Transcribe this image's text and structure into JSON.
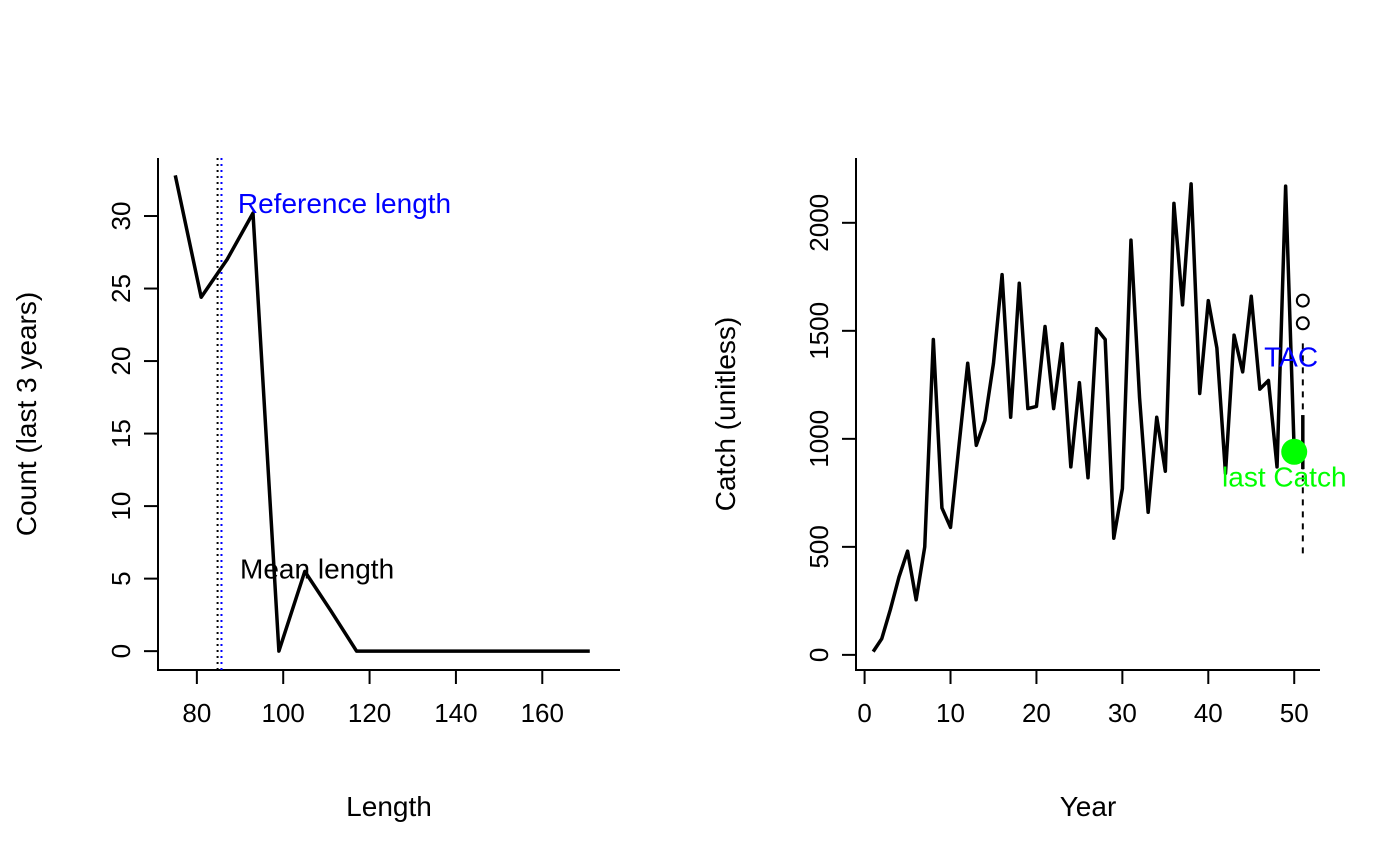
{
  "chart_data": [
    {
      "type": "line",
      "xlabel": "Length",
      "ylabel": "Count (last 3 years)",
      "xlim": [
        71,
        178
      ],
      "ylim": [
        -1.3,
        34
      ],
      "xticks": [
        80,
        100,
        120,
        140,
        160
      ],
      "yticks": [
        0,
        5,
        10,
        15,
        20,
        25,
        30
      ],
      "series": [
        {
          "x": [
            75,
            81,
            87,
            93,
            99,
            105,
            111,
            117,
            123,
            129,
            135,
            141,
            147,
            153,
            159,
            165,
            171
          ],
          "values": [
            32.8,
            24.4,
            27.0,
            30.2,
            0,
            5.5,
            2.8,
            0,
            0,
            0,
            0,
            0,
            0,
            0,
            0,
            0,
            0
          ],
          "color": "#000000"
        }
      ],
      "vlines": [
        {
          "x": 84.8,
          "color": "#000000",
          "style": "dotted"
        },
        {
          "x": 85.7,
          "color": "#0000FF",
          "style": "dotted"
        }
      ],
      "annotations": [
        {
          "text": "Reference length",
          "x": 89.5,
          "y": 30.2,
          "color": "#0000FF"
        },
        {
          "text": "Mean length",
          "x": 90.0,
          "y": 5.0,
          "color": "#000000"
        }
      ]
    },
    {
      "type": "line",
      "xlabel": "Year",
      "ylabel": "Catch (unitless)",
      "xlim": [
        -1,
        53
      ],
      "ylim": [
        -70,
        2300
      ],
      "xticks": [
        0,
        10,
        20,
        30,
        40,
        50
      ],
      "yticks": [
        0,
        500,
        1000,
        1500,
        2000
      ],
      "series": [
        {
          "x": [
            1,
            2,
            3,
            4,
            5,
            6,
            7,
            8,
            9,
            10,
            11,
            12,
            13,
            14,
            15,
            16,
            17,
            18,
            19,
            20,
            21,
            22,
            23,
            24,
            25,
            26,
            27,
            28,
            29,
            30,
            31,
            32,
            33,
            34,
            35,
            36,
            37,
            38,
            39,
            40,
            41,
            42,
            43,
            44,
            45,
            46,
            47,
            48,
            49,
            50
          ],
          "values": [
            15,
            75,
            210,
            360,
            480,
            255,
            500,
            1460,
            680,
            590,
            975,
            1350,
            970,
            1085,
            1350,
            1760,
            1100,
            1720,
            1140,
            1150,
            1520,
            1140,
            1440,
            870,
            1260,
            820,
            1510,
            1460,
            540,
            770,
            1920,
            1190,
            660,
            1100,
            850,
            2090,
            1620,
            2180,
            1210,
            1640,
            1420,
            840,
            1480,
            1310,
            1660,
            1230,
            1270,
            870,
            2170,
            940
          ],
          "color": "#000000"
        }
      ],
      "vlines": [
        {
          "x": 51,
          "ymin": 470,
          "ymax": 1450,
          "color": "#000000",
          "style": "dashed"
        }
      ],
      "extra_segments": [
        {
          "x": [
            51,
            51
          ],
          "values": [
            860,
            1110
          ],
          "color": "#000000"
        }
      ],
      "open_points": [
        {
          "x": 51,
          "y": 1535
        },
        {
          "x": 51,
          "y": 1640
        }
      ],
      "highlight_point": {
        "x": 50,
        "y": 940,
        "color": "#00FF00"
      },
      "annotations": [
        {
          "text": "TAC",
          "x": 46.5,
          "y": 1335,
          "color": "#0000FF"
        },
        {
          "text": "last Catch",
          "x": 41.6,
          "y": 780,
          "color": "#00FF00"
        }
      ]
    }
  ]
}
